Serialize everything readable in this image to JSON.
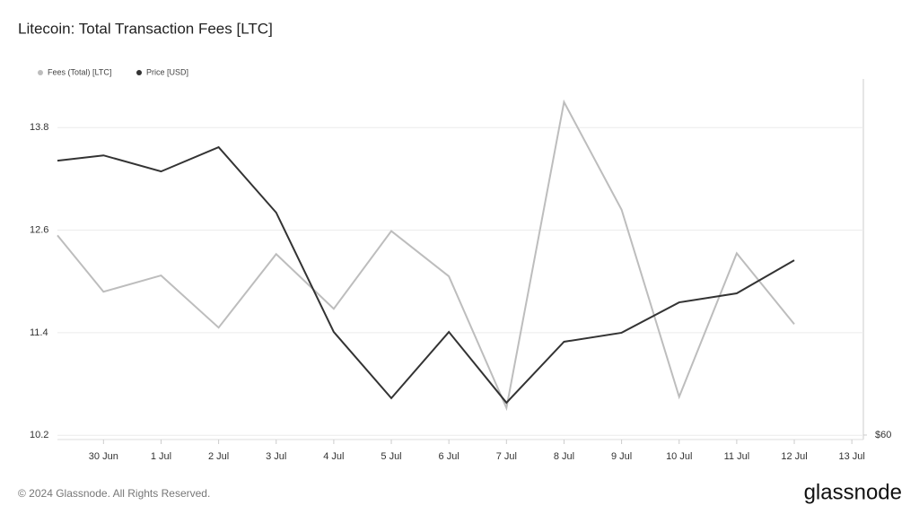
{
  "chart_data": {
    "type": "line",
    "title": "Litecoin: Total Transaction Fees [LTC]",
    "x": [
      -0.8,
      0,
      1,
      2,
      3,
      4,
      5,
      6,
      7,
      8,
      9,
      10,
      11,
      12
    ],
    "xlim": [
      -0.8,
      13.2
    ],
    "xticks": [
      {
        "value": 0,
        "label": "30 Jun"
      },
      {
        "value": 1,
        "label": "1 Jul"
      },
      {
        "value": 2,
        "label": "2 Jul"
      },
      {
        "value": 3,
        "label": "3 Jul"
      },
      {
        "value": 4,
        "label": "4 Jul"
      },
      {
        "value": 5,
        "label": "5 Jul"
      },
      {
        "value": 6,
        "label": "6 Jul"
      },
      {
        "value": 7,
        "label": "7 Jul"
      },
      {
        "value": 8,
        "label": "8 Jul"
      },
      {
        "value": 9,
        "label": "9 Jul"
      },
      {
        "value": 10,
        "label": "10 Jul"
      },
      {
        "value": 11,
        "label": "11 Jul"
      },
      {
        "value": 12,
        "label": "12 Jul"
      },
      {
        "value": 13,
        "label": "13 Jul"
      }
    ],
    "ylim": [
      10.15,
      14.37
    ],
    "yticks": [
      10.2,
      11.4,
      12.6,
      13.8
    ],
    "y2lim": [
      59.77,
      78.17
    ],
    "y2ticks": [
      {
        "value": 60,
        "label": "$60"
      }
    ],
    "grid": true,
    "series": [
      {
        "name": "Fees (Total) [LTC]",
        "color": "#bdbdbd",
        "values": [
          12.54,
          11.88,
          12.07,
          11.46,
          12.32,
          11.68,
          12.59,
          12.06,
          10.52,
          14.1,
          12.84,
          10.65,
          12.33,
          11.5
        ]
      },
      {
        "name": "Price [USD]",
        "color": "#333333",
        "axis": "y2",
        "values": [
          74.0,
          74.27,
          73.45,
          74.69,
          71.35,
          65.26,
          61.88,
          65.26,
          61.65,
          64.76,
          65.22,
          66.77,
          67.23,
          68.92
        ]
      }
    ]
  },
  "footer": {
    "copyright": "© 2024 Glassnode. All Rights Reserved.",
    "logo": "glassnode"
  }
}
